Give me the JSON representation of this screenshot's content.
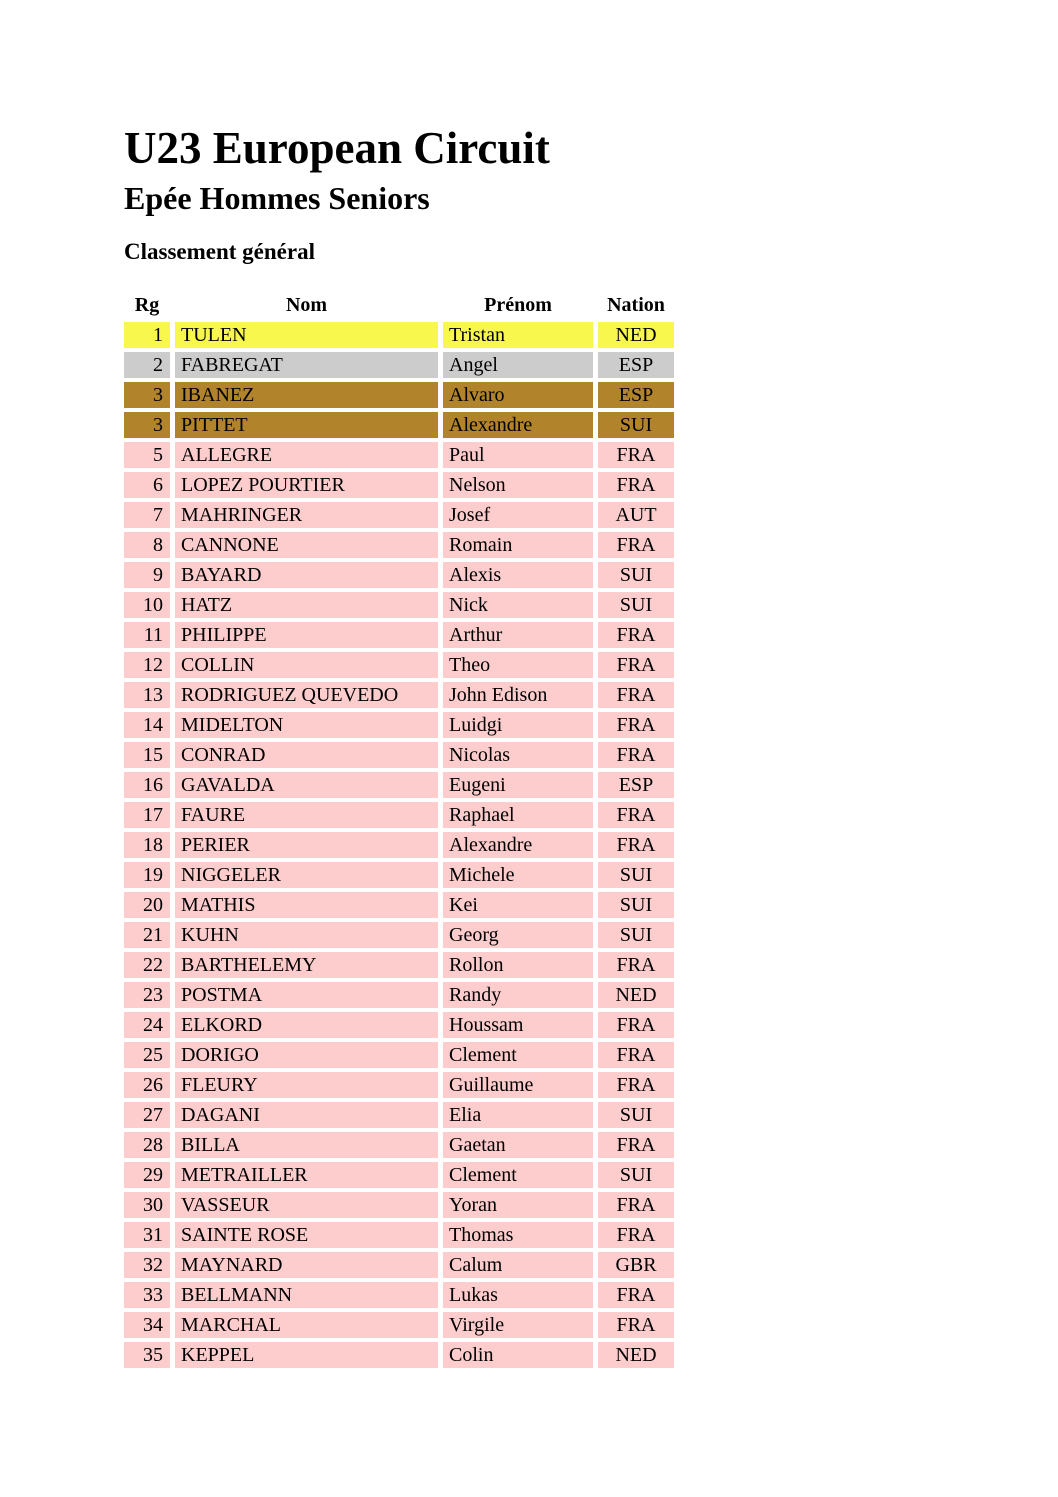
{
  "header": {
    "title": "U23 European Circuit",
    "subtitle": "Epée Hommes Seniors"
  },
  "section": {
    "heading": "Classement général"
  },
  "table": {
    "columns": [
      "Rg",
      "Nom",
      "Prénom",
      "Nation"
    ],
    "highlight_colors": {
      "gold": "#F7F74D",
      "silver": "#CCCCCC",
      "bronze": "#B1832B",
      "default": "#FDCCCC"
    },
    "rows": [
      {
        "rg": "1",
        "nom": "TULEN",
        "prenom": "Tristan",
        "nation": "NED",
        "highlight": "gold"
      },
      {
        "rg": "2",
        "nom": "FABREGAT",
        "prenom": "Angel",
        "nation": "ESP",
        "highlight": "silver"
      },
      {
        "rg": "3",
        "nom": "IBANEZ",
        "prenom": "Alvaro",
        "nation": "ESP",
        "highlight": "bronze"
      },
      {
        "rg": "3",
        "nom": "PITTET",
        "prenom": "Alexandre",
        "nation": "SUI",
        "highlight": "bronze"
      },
      {
        "rg": "5",
        "nom": "ALLEGRE",
        "prenom": "Paul",
        "nation": "FRA",
        "highlight": "default"
      },
      {
        "rg": "6",
        "nom": "LOPEZ POURTIER",
        "prenom": "Nelson",
        "nation": "FRA",
        "highlight": "default"
      },
      {
        "rg": "7",
        "nom": "MAHRINGER",
        "prenom": "Josef",
        "nation": "AUT",
        "highlight": "default"
      },
      {
        "rg": "8",
        "nom": "CANNONE",
        "prenom": "Romain",
        "nation": "FRA",
        "highlight": "default"
      },
      {
        "rg": "9",
        "nom": "BAYARD",
        "prenom": "Alexis",
        "nation": "SUI",
        "highlight": "default"
      },
      {
        "rg": "10",
        "nom": "HATZ",
        "prenom": "Nick",
        "nation": "SUI",
        "highlight": "default"
      },
      {
        "rg": "11",
        "nom": "PHILIPPE",
        "prenom": "Arthur",
        "nation": "FRA",
        "highlight": "default"
      },
      {
        "rg": "12",
        "nom": "COLLIN",
        "prenom": "Theo",
        "nation": "FRA",
        "highlight": "default"
      },
      {
        "rg": "13",
        "nom": "RODRIGUEZ QUEVEDO",
        "prenom": "John Edison",
        "nation": "FRA",
        "highlight": "default"
      },
      {
        "rg": "14",
        "nom": "MIDELTON",
        "prenom": "Luidgi",
        "nation": "FRA",
        "highlight": "default"
      },
      {
        "rg": "15",
        "nom": "CONRAD",
        "prenom": "Nicolas",
        "nation": "FRA",
        "highlight": "default"
      },
      {
        "rg": "16",
        "nom": "GAVALDA",
        "prenom": "Eugeni",
        "nation": "ESP",
        "highlight": "default"
      },
      {
        "rg": "17",
        "nom": "FAURE",
        "prenom": "Raphael",
        "nation": "FRA",
        "highlight": "default"
      },
      {
        "rg": "18",
        "nom": "PERIER",
        "prenom": "Alexandre",
        "nation": "FRA",
        "highlight": "default"
      },
      {
        "rg": "19",
        "nom": "NIGGELER",
        "prenom": "Michele",
        "nation": "SUI",
        "highlight": "default"
      },
      {
        "rg": "20",
        "nom": "MATHIS",
        "prenom": "Kei",
        "nation": "SUI",
        "highlight": "default"
      },
      {
        "rg": "21",
        "nom": "KUHN",
        "prenom": "Georg",
        "nation": "SUI",
        "highlight": "default"
      },
      {
        "rg": "22",
        "nom": "BARTHELEMY",
        "prenom": "Rollon",
        "nation": "FRA",
        "highlight": "default"
      },
      {
        "rg": "23",
        "nom": "POSTMA",
        "prenom": "Randy",
        "nation": "NED",
        "highlight": "default"
      },
      {
        "rg": "24",
        "nom": "ELKORD",
        "prenom": "Houssam",
        "nation": "FRA",
        "highlight": "default"
      },
      {
        "rg": "25",
        "nom": "DORIGO",
        "prenom": "Clement",
        "nation": "FRA",
        "highlight": "default"
      },
      {
        "rg": "26",
        "nom": "FLEURY",
        "prenom": "Guillaume",
        "nation": "FRA",
        "highlight": "default"
      },
      {
        "rg": "27",
        "nom": "DAGANI",
        "prenom": "Elia",
        "nation": "SUI",
        "highlight": "default"
      },
      {
        "rg": "28",
        "nom": "BILLA",
        "prenom": "Gaetan",
        "nation": "FRA",
        "highlight": "default"
      },
      {
        "rg": "29",
        "nom": "METRAILLER",
        "prenom": "Clement",
        "nation": "SUI",
        "highlight": "default"
      },
      {
        "rg": "30",
        "nom": "VASSEUR",
        "prenom": "Yoran",
        "nation": "FRA",
        "highlight": "default"
      },
      {
        "rg": "31",
        "nom": "SAINTE ROSE",
        "prenom": "Thomas",
        "nation": "FRA",
        "highlight": "default"
      },
      {
        "rg": "32",
        "nom": "MAYNARD",
        "prenom": "Calum",
        "nation": "GBR",
        "highlight": "default"
      },
      {
        "rg": "33",
        "nom": "BELLMANN",
        "prenom": "Lukas",
        "nation": "FRA",
        "highlight": "default"
      },
      {
        "rg": "34",
        "nom": "MARCHAL",
        "prenom": "Virgile",
        "nation": "FRA",
        "highlight": "default"
      },
      {
        "rg": "35",
        "nom": "KEPPEL",
        "prenom": "Colin",
        "nation": "NED",
        "highlight": "default"
      }
    ]
  }
}
